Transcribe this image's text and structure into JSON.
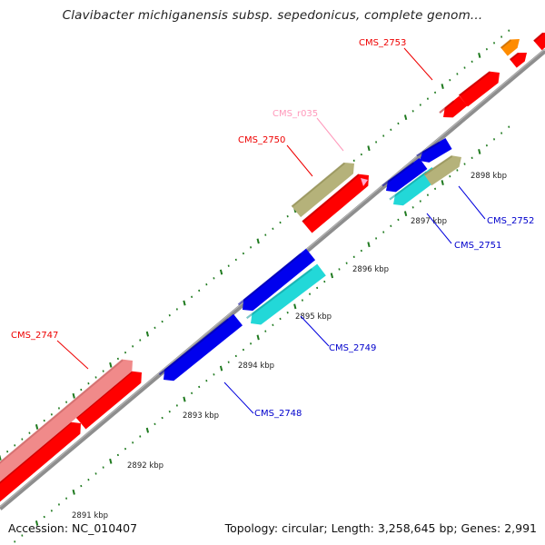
{
  "title": "Clavibacter michiganensis subsp. sepedonicus, complete genom...",
  "accession": "Accession: NC_010407",
  "summary": "Topology: circular; Length: 3,258,645 bp; Genes: 2,991",
  "colors": {
    "backbone": "#888888",
    "tick": "#1f7a1f",
    "forward_gene": "#ff0000",
    "forward_gene_dark": "#b00000",
    "reverse_gene": "#0000ee",
    "reverse_gene_dark": "#00009a",
    "cyan_gene": "#22d8d8",
    "tan_gene": "#b5b27a",
    "pink_gene": "#f08a8a",
    "orange_gene": "#ff8c00",
    "rna": "#ffaacc"
  },
  "scale_labels": [
    "2891 kbp",
    "2892 kbp",
    "2893 kbp",
    "2894 kbp",
    "2895 kbp",
    "2896 kbp",
    "2897 kbp",
    "2898 kbp"
  ],
  "gene_labels": {
    "cms_2747": "CMS_2747",
    "cms_2748": "CMS_2748",
    "cms_2749": "CMS_2749",
    "cms_2750": "CMS_2750",
    "cms_r035": "CMS_r035",
    "cms_2751": "CMS_2751",
    "cms_2752": "CMS_2752",
    "cms_2753": "CMS_2753"
  }
}
